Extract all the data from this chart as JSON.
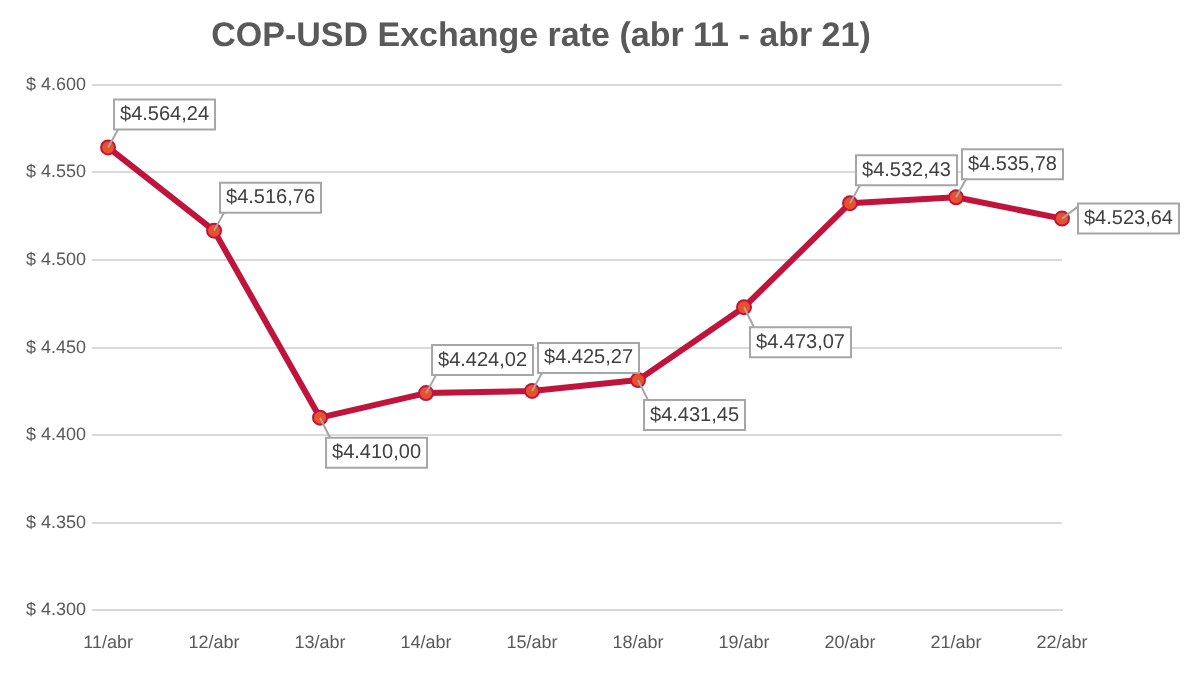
{
  "chart_data": {
    "type": "line",
    "title": "COP-USD Exchange rate (abr 11 - abr 21)",
    "categories": [
      "11/abr",
      "12/abr",
      "13/abr",
      "14/abr",
      "15/abr",
      "18/abr",
      "19/abr",
      "20/abr",
      "21/abr",
      "22/abr"
    ],
    "series": [
      {
        "color": "#c0143c",
        "values": [
          4564.24,
          4516.76,
          4410.0,
          4424.02,
          4425.27,
          4431.45,
          4473.07,
          4532.43,
          4535.78,
          4523.64
        ],
        "value_labels": [
          "$4.564,24",
          "$4.516,76",
          "$4.410,00",
          "$4.424,02",
          "$4.425,27",
          "$4.431,45",
          "$4.473,07",
          "$4.532,43",
          "$4.535,78",
          "$4.523,64"
        ]
      }
    ],
    "ylim": [
      4300,
      4600
    ],
    "yticks": [
      {
        "value": 4300,
        "label": "$ 4.300"
      },
      {
        "value": 4350,
        "label": "$ 4.350"
      },
      {
        "value": 4400,
        "label": "$ 4.400"
      },
      {
        "value": 4450,
        "label": "$ 4.450"
      },
      {
        "value": 4500,
        "label": "$ 4.500"
      },
      {
        "value": 4550,
        "label": "$ 4.550"
      },
      {
        "value": 4600,
        "label": "$ 4.600"
      }
    ],
    "grid": "y",
    "marker": "circle",
    "line_style": "solid",
    "legend": false
  }
}
